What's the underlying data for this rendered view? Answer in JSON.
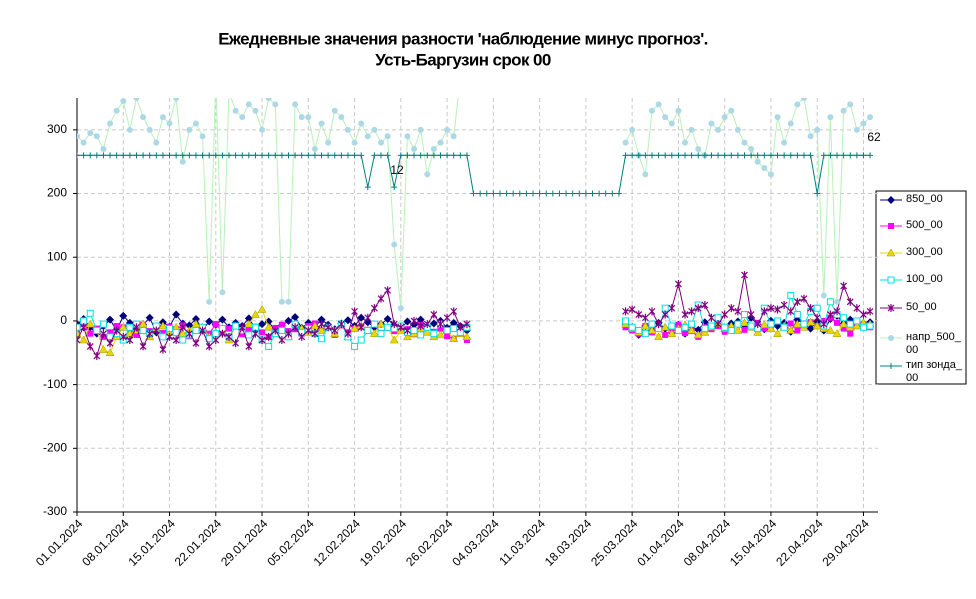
{
  "chart_data": {
    "type": "line",
    "title": "Ежедневные значения разности 'наблюдение минус прогноз'.",
    "subtitle": "Усть-Баргузин    срок 00",
    "x": [
      "01.01.2024",
      "02.01.2024",
      "03.01.2024",
      "04.01.2024",
      "05.01.2024",
      "06.01.2024",
      "07.01.2024",
      "08.01.2024",
      "09.01.2024",
      "10.01.2024",
      "11.01.2024",
      "12.01.2024",
      "13.01.2024",
      "14.01.2024",
      "15.01.2024",
      "16.01.2024",
      "17.01.2024",
      "18.01.2024",
      "19.01.2024",
      "20.01.2024",
      "21.01.2024",
      "22.01.2024",
      "23.01.2024",
      "24.01.2024",
      "25.01.2024",
      "26.01.2024",
      "27.01.2024",
      "28.01.2024",
      "29.01.2024",
      "30.01.2024",
      "31.01.2024",
      "01.02.2024",
      "02.02.2024",
      "03.02.2024",
      "04.02.2024",
      "05.02.2024",
      "06.02.2024",
      "07.02.2024",
      "08.02.2024",
      "09.02.2024",
      "10.02.2024",
      "11.02.2024",
      "12.02.2024",
      "13.02.2024",
      "14.02.2024",
      "15.02.2024",
      "16.02.2024",
      "17.02.2024",
      "18.02.2024",
      "19.02.2024",
      "20.02.2024",
      "21.02.2024",
      "22.02.2024",
      "23.02.2024",
      "24.02.2024",
      "25.02.2024",
      "26.02.2024",
      "27.02.2024",
      "28.02.2024",
      "29.02.2024",
      "01.03.2024",
      "02.03.2024",
      "03.03.2024",
      "04.03.2024",
      "05.03.2024",
      "06.03.2024",
      "07.03.2024",
      "08.03.2024",
      "09.03.2024",
      "10.03.2024",
      "11.03.2024",
      "12.03.2024",
      "13.03.2024",
      "14.03.2024",
      "15.03.2024",
      "16.03.2024",
      "17.03.2024",
      "18.03.2024",
      "19.03.2024",
      "20.03.2024",
      "21.03.2024",
      "22.03.2024",
      "23.03.2024",
      "24.03.2024",
      "25.03.2024",
      "26.03.2024",
      "27.03.2024",
      "28.03.2024",
      "29.03.2024",
      "30.03.2024",
      "31.03.2024",
      "01.04.2024",
      "02.04.2024",
      "03.04.2024",
      "04.04.2024",
      "05.04.2024",
      "06.04.2024",
      "07.04.2024",
      "08.04.2024",
      "09.04.2024",
      "10.04.2024",
      "11.04.2024",
      "12.04.2024",
      "13.04.2024",
      "14.04.2024",
      "15.04.2024",
      "16.04.2024",
      "17.04.2024",
      "18.04.2024",
      "19.04.2024",
      "20.04.2024",
      "21.04.2024",
      "22.04.2024",
      "23.04.2024",
      "24.04.2024",
      "25.04.2024",
      "26.04.2024",
      "27.04.2024",
      "28.04.2024",
      "29.04.2024",
      "30.04.2024"
    ],
    "xticks": [
      "01.01.2024",
      "08.01.2024",
      "15.01.2024",
      "22.01.2024",
      "29.01.2024",
      "05.02.2024",
      "12.02.2024",
      "19.02.2024",
      "26.02.2024",
      "04.03.2024",
      "11.03.2024",
      "18.03.2024",
      "25.03.2024",
      "01.04.2024",
      "08.04.2024",
      "15.04.2024",
      "22.04.2024",
      "29.04.2024"
    ],
    "ylim": [
      -300,
      350
    ],
    "yticks": [
      -300,
      -200,
      -100,
      0,
      100,
      200,
      300
    ],
    "grid": true,
    "legend": "right",
    "annotations": [
      "12",
      "62"
    ],
    "series": [
      {
        "name": "850_00",
        "color": "#000080",
        "marker": "diamond",
        "values": [
          -5,
          3,
          -10,
          -20,
          -8,
          2,
          -15,
          8,
          -3,
          -12,
          -6,
          5,
          -18,
          -2,
          -9,
          10,
          -4,
          -7,
          3,
          -14,
          -1,
          -6,
          2,
          -10,
          -3,
          -8,
          4,
          -12,
          -5,
          -1,
          -16,
          -7,
          0,
          6,
          -11,
          -3,
          -9,
          2,
          -6,
          -13,
          -4,
          1,
          -8,
          5,
          -2,
          -10,
          -5,
          3,
          -7,
          -12,
          -1,
          -6,
          2,
          -9,
          -4,
          0,
          -11,
          -3,
          -8,
          -15,
          null,
          null,
          null,
          null,
          null,
          null,
          null,
          null,
          null,
          null,
          null,
          null,
          null,
          null,
          null,
          null,
          null,
          null,
          null,
          null,
          null,
          null,
          null,
          -5,
          -10,
          -22,
          -8,
          -15,
          -3,
          -12,
          -18,
          -6,
          -20,
          -9,
          -14,
          -2,
          -11,
          -7,
          -16,
          -4,
          -1,
          -10,
          5,
          -6,
          -13,
          0,
          -8,
          -3,
          -17,
          2,
          -5,
          -12,
          -1,
          -15,
          3,
          8,
          -4,
          2,
          -6,
          -9,
          -2
        ]
      },
      {
        "name": "500_00",
        "color": "#ff00ff",
        "marker": "square",
        "values": [
          -15,
          -5,
          -20,
          -12,
          -25,
          -18,
          -8,
          -10,
          -14,
          -22,
          -6,
          -16,
          -11,
          -19,
          -9,
          -13,
          -7,
          -24,
          -15,
          -10,
          -20,
          -5,
          -17,
          -12,
          -8,
          -21,
          -14,
          -9,
          -18,
          -25,
          -11,
          -6,
          -16,
          -13,
          -20,
          -8,
          -4,
          -15,
          -10,
          -22,
          -7,
          -18,
          -12,
          -9,
          -14,
          -5,
          -19,
          -11,
          -16,
          -8,
          -13,
          -21,
          -6,
          -10,
          -17,
          -12,
          -24,
          -28,
          -20,
          -30,
          null,
          null,
          null,
          null,
          null,
          null,
          null,
          null,
          null,
          null,
          null,
          null,
          null,
          null,
          null,
          null,
          null,
          null,
          null,
          null,
          null,
          null,
          null,
          -10,
          -15,
          -20,
          -8,
          -18,
          -12,
          -22,
          -14,
          -6,
          -19,
          -16,
          -25,
          -10,
          -13,
          -8,
          -17,
          -11,
          -5,
          -14,
          -9,
          -3,
          -12,
          -7,
          -1,
          -10,
          -4,
          -15,
          -6,
          -2,
          -8,
          0,
          5,
          -3,
          -12,
          -20,
          -7,
          -5,
          -10
        ]
      },
      {
        "name": "300_00",
        "color": "#e8d800",
        "marker": "triangle",
        "values": [
          -20,
          -30,
          -5,
          -15,
          -45,
          -50,
          -25,
          -10,
          -20,
          -15,
          -5,
          -25,
          -12,
          -8,
          -18,
          -10,
          -20,
          -15,
          -5,
          -10,
          -25,
          -18,
          -12,
          -30,
          -8,
          -15,
          -5,
          10,
          18,
          -10,
          -20,
          -15,
          -25,
          -5,
          -12,
          -18,
          -8,
          -15,
          -10,
          -20,
          -5,
          -25,
          -12,
          -8,
          -15,
          -20,
          -5,
          -10,
          -30,
          -15,
          -25,
          -20,
          -12,
          -18,
          -25,
          -22,
          -15,
          -28,
          -20,
          -25,
          null,
          null,
          null,
          null,
          null,
          null,
          null,
          null,
          null,
          null,
          null,
          null,
          null,
          null,
          null,
          null,
          null,
          null,
          null,
          null,
          null,
          null,
          null,
          -5,
          -12,
          -18,
          -8,
          -15,
          -25,
          -10,
          -20,
          -12,
          -6,
          -15,
          -22,
          -18,
          -10,
          -5,
          -12,
          -8,
          -15,
          -3,
          -10,
          -18,
          -6,
          -12,
          -20,
          -8,
          -15,
          -5,
          -10,
          -2,
          -8,
          -12,
          -15,
          -20,
          -5,
          -10,
          -8,
          -3,
          -5
        ]
      },
      {
        "name": "100_00",
        "color": "#00e0e0",
        "marker": "open-square",
        "values": [
          -10,
          0,
          12,
          -15,
          -5,
          -25,
          -20,
          -30,
          -10,
          -5,
          -15,
          -20,
          -8,
          -25,
          -12,
          -18,
          -30,
          -22,
          -15,
          -10,
          -28,
          -20,
          -12,
          -25,
          -8,
          -15,
          -22,
          -10,
          -30,
          -40,
          -20,
          -15,
          -25,
          -5,
          -18,
          -12,
          -20,
          -28,
          -10,
          -15,
          -5,
          -25,
          -40,
          -30,
          -15,
          -5,
          -20,
          -10,
          -12,
          -8,
          -18,
          -15,
          -22,
          -10,
          -20,
          -5,
          -15,
          -12,
          -18,
          -10,
          null,
          null,
          null,
          null,
          null,
          null,
          null,
          null,
          null,
          null,
          null,
          null,
          null,
          null,
          null,
          null,
          null,
          null,
          null,
          null,
          null,
          null,
          null,
          0,
          -10,
          -15,
          -20,
          -5,
          -12,
          20,
          -8,
          -15,
          -10,
          -5,
          25,
          -12,
          -8,
          5,
          -10,
          -15,
          -5,
          10,
          -8,
          -12,
          20,
          -5,
          0,
          -10,
          40,
          10,
          -5,
          15,
          20,
          -8,
          30,
          10,
          5,
          -5,
          0,
          -10,
          -8
        ]
      },
      {
        "name": "50_00",
        "color": "#800080",
        "marker": "star",
        "values": [
          -30,
          -10,
          -40,
          -55,
          -20,
          -35,
          -15,
          -25,
          -30,
          -10,
          -40,
          -20,
          -15,
          -45,
          -25,
          -30,
          -10,
          -20,
          -35,
          -15,
          -40,
          -30,
          -20,
          -25,
          -35,
          -10,
          -40,
          -20,
          -30,
          -25,
          -15,
          -30,
          -20,
          -10,
          -25,
          -15,
          -20,
          -5,
          -10,
          -15,
          -5,
          -20,
          15,
          -10,
          5,
          20,
          35,
          48,
          -5,
          -10,
          -15,
          0,
          -8,
          -5,
          10,
          -5,
          5,
          15,
          -10,
          -5,
          null,
          null,
          null,
          null,
          null,
          null,
          null,
          null,
          null,
          null,
          null,
          null,
          null,
          null,
          null,
          null,
          null,
          null,
          null,
          null,
          null,
          null,
          null,
          15,
          18,
          10,
          5,
          15,
          -5,
          10,
          20,
          58,
          10,
          15,
          20,
          25,
          5,
          -5,
          10,
          20,
          15,
          72,
          10,
          -5,
          15,
          20,
          18,
          25,
          15,
          30,
          35,
          20,
          5,
          -5,
          10,
          15,
          55,
          30,
          20,
          10,
          15
        ]
      },
      {
        "name": "напр_500_00",
        "color": "#add8e6",
        "line_color": "#b8f0b8",
        "marker": "circle",
        "values": [
          290,
          280,
          295,
          290,
          270,
          310,
          330,
          345,
          300,
          350,
          320,
          300,
          280,
          320,
          310,
          350,
          250,
          300,
          310,
          290,
          30,
          380,
          45,
          360,
          330,
          320,
          340,
          330,
          300,
          350,
          340,
          30,
          30,
          340,
          320,
          320,
          270,
          310,
          280,
          330,
          320,
          300,
          280,
          310,
          290,
          300,
          280,
          290,
          120,
          20,
          290,
          270,
          300,
          230,
          270,
          280,
          300,
          290,
          380,
          400,
          null,
          null,
          null,
          null,
          null,
          null,
          null,
          null,
          null,
          null,
          null,
          null,
          null,
          null,
          null,
          null,
          null,
          null,
          null,
          null,
          null,
          null,
          null,
          280,
          300,
          260,
          230,
          330,
          340,
          320,
          310,
          330,
          280,
          300,
          270,
          260,
          310,
          300,
          320,
          330,
          300,
          280,
          270,
          250,
          240,
          230,
          320,
          280,
          310,
          340,
          350,
          290,
          300,
          40,
          320,
          30,
          330,
          340,
          300,
          310,
          320
        ]
      },
      {
        "name": "тип зонда_00",
        "color": "#008080",
        "marker": "plus",
        "values": [
          260,
          260,
          260,
          260,
          260,
          260,
          260,
          260,
          260,
          260,
          260,
          260,
          260,
          260,
          260,
          260,
          260,
          260,
          260,
          260,
          260,
          260,
          260,
          260,
          260,
          260,
          260,
          260,
          260,
          260,
          260,
          260,
          260,
          260,
          260,
          260,
          260,
          260,
          260,
          260,
          260,
          260,
          260,
          260,
          210,
          260,
          260,
          260,
          210,
          260,
          260,
          260,
          260,
          260,
          260,
          260,
          260,
          260,
          260,
          260,
          200,
          200,
          200,
          200,
          200,
          200,
          200,
          200,
          200,
          200,
          200,
          200,
          200,
          200,
          200,
          200,
          200,
          200,
          200,
          200,
          200,
          200,
          200,
          260,
          260,
          260,
          260,
          260,
          260,
          260,
          260,
          260,
          260,
          260,
          260,
          260,
          260,
          260,
          260,
          260,
          260,
          260,
          260,
          260,
          260,
          260,
          260,
          260,
          260,
          260,
          260,
          260,
          200,
          260,
          260,
          260,
          260,
          260,
          260,
          260,
          260
        ]
      }
    ]
  }
}
